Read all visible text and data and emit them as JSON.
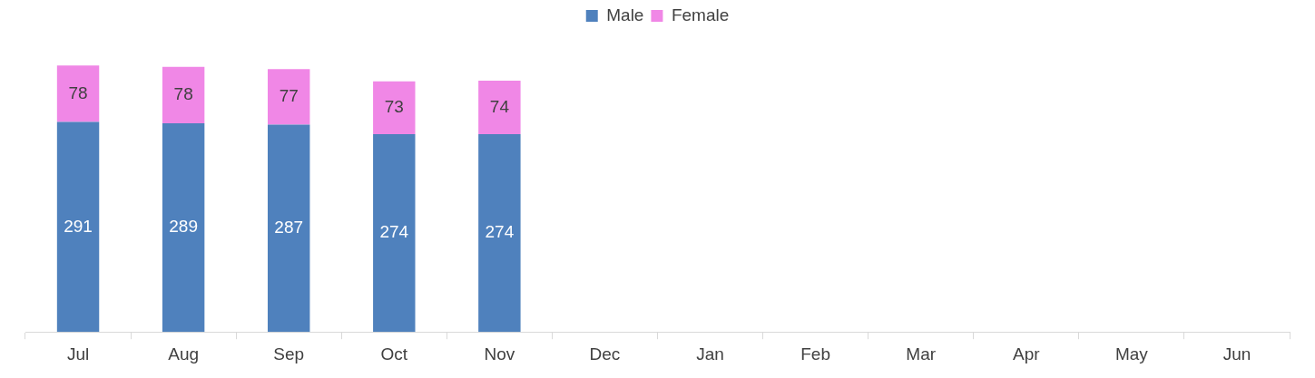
{
  "chart_data": {
    "type": "bar",
    "stacked": true,
    "categories": [
      "Jul",
      "Aug",
      "Sep",
      "Oct",
      "Nov",
      "Dec",
      "Jan",
      "Feb",
      "Mar",
      "Apr",
      "May",
      "Jun"
    ],
    "series": [
      {
        "name": "Male",
        "color": "#4f81bd",
        "values": [
          291,
          289,
          287,
          274,
          274,
          null,
          null,
          null,
          null,
          null,
          null,
          null
        ]
      },
      {
        "name": "Female",
        "color": "#f087e6",
        "values": [
          78,
          78,
          77,
          73,
          74,
          null,
          null,
          null,
          null,
          null,
          null,
          null
        ]
      }
    ],
    "data_labels": true,
    "legend": "top",
    "grid": false
  }
}
